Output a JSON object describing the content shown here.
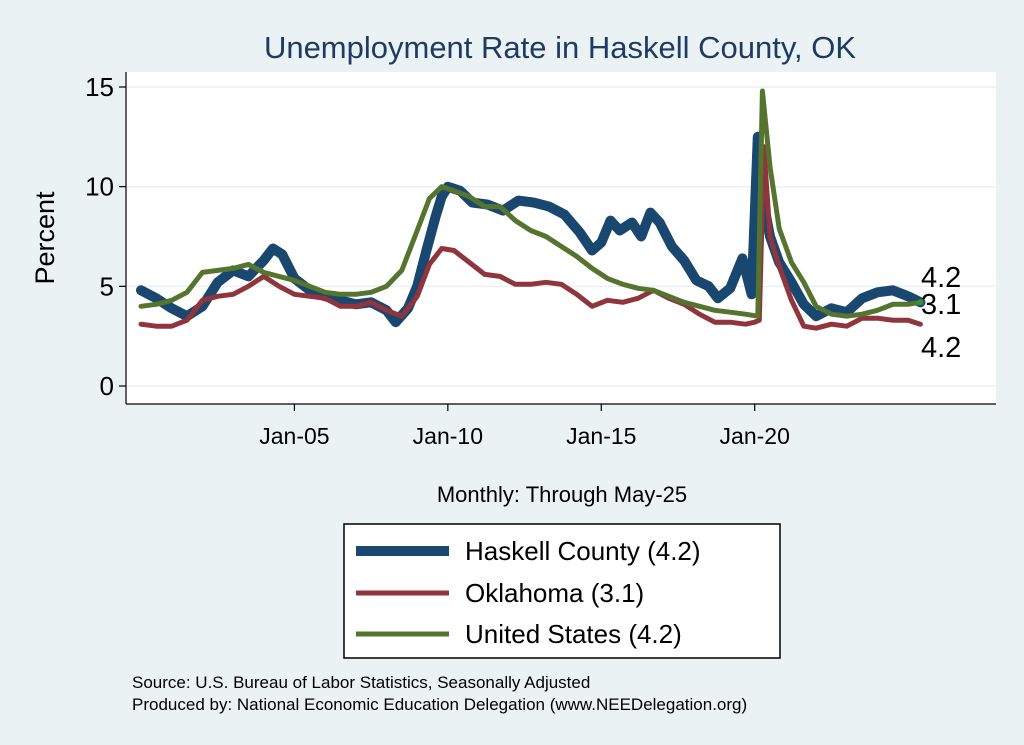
{
  "chart_data": {
    "type": "line",
    "title": "Unemployment Rate in Haskell  County, OK",
    "xlabel": "Monthly: Through May-25",
    "ylabel": "Percent",
    "ylim": [
      0,
      15
    ],
    "xlim": [
      2000.0,
      2028.0
    ],
    "yticks": [
      {
        "value": 0,
        "label": "0"
      },
      {
        "value": 5,
        "label": "5"
      },
      {
        "value": 10,
        "label": "10"
      },
      {
        "value": 15,
        "label": "15"
      }
    ],
    "xticks": [
      {
        "value": 2005.0,
        "label": "Jan-05"
      },
      {
        "value": 2010.0,
        "label": "Jan-10"
      },
      {
        "value": 2015.0,
        "label": "Jan-15"
      },
      {
        "value": 2020.0,
        "label": "Jan-20"
      }
    ],
    "grid": true,
    "series": [
      {
        "name": "Haskell  County",
        "legend": "Haskell  County (4.2)",
        "color": "#1a476f",
        "last_label": "4.2",
        "points": [
          [
            2000.0,
            4.8
          ],
          [
            2000.5,
            4.4
          ],
          [
            2001.0,
            3.9
          ],
          [
            2001.5,
            3.5
          ],
          [
            2002.0,
            4.0
          ],
          [
            2002.5,
            5.2
          ],
          [
            2003.0,
            5.8
          ],
          [
            2003.5,
            5.5
          ],
          [
            2004.0,
            6.3
          ],
          [
            2004.3,
            6.9
          ],
          [
            2004.6,
            6.6
          ],
          [
            2005.0,
            5.4
          ],
          [
            2005.5,
            4.8
          ],
          [
            2006.0,
            4.5
          ],
          [
            2006.5,
            4.3
          ],
          [
            2007.0,
            4.1
          ],
          [
            2007.5,
            4.2
          ],
          [
            2008.0,
            3.8
          ],
          [
            2008.3,
            3.2
          ],
          [
            2008.7,
            3.9
          ],
          [
            2009.0,
            5.0
          ],
          [
            2009.3,
            6.8
          ],
          [
            2009.6,
            8.5
          ],
          [
            2009.8,
            9.5
          ],
          [
            2010.0,
            10.0
          ],
          [
            2010.4,
            9.8
          ],
          [
            2010.8,
            9.2
          ],
          [
            2011.3,
            9.1
          ],
          [
            2011.8,
            8.8
          ],
          [
            2012.3,
            9.3
          ],
          [
            2012.8,
            9.2
          ],
          [
            2013.3,
            9.0
          ],
          [
            2013.8,
            8.6
          ],
          [
            2014.3,
            7.7
          ],
          [
            2014.7,
            6.8
          ],
          [
            2015.0,
            7.2
          ],
          [
            2015.3,
            8.3
          ],
          [
            2015.6,
            7.8
          ],
          [
            2016.0,
            8.2
          ],
          [
            2016.3,
            7.5
          ],
          [
            2016.6,
            8.7
          ],
          [
            2016.9,
            8.2
          ],
          [
            2017.3,
            7.0
          ],
          [
            2017.7,
            6.3
          ],
          [
            2018.1,
            5.3
          ],
          [
            2018.5,
            5.0
          ],
          [
            2018.8,
            4.4
          ],
          [
            2019.2,
            4.9
          ],
          [
            2019.6,
            6.4
          ],
          [
            2019.9,
            4.6
          ],
          [
            2020.1,
            12.5
          ],
          [
            2020.25,
            9.5
          ],
          [
            2020.5,
            7.5
          ],
          [
            2020.8,
            6.2
          ],
          [
            2021.2,
            5.2
          ],
          [
            2021.6,
            4.1
          ],
          [
            2022.0,
            3.5
          ],
          [
            2022.5,
            3.9
          ],
          [
            2023.0,
            3.7
          ],
          [
            2023.5,
            4.4
          ],
          [
            2024.0,
            4.7
          ],
          [
            2024.5,
            4.8
          ],
          [
            2025.0,
            4.5
          ],
          [
            2025.4,
            4.2
          ]
        ]
      },
      {
        "name": "Oklahoma",
        "legend": "Oklahoma (3.1)",
        "color": "#90353b",
        "last_label": "3.1",
        "points": [
          [
            2000.0,
            3.1
          ],
          [
            2000.5,
            3.0
          ],
          [
            2001.0,
            3.0
          ],
          [
            2001.5,
            3.3
          ],
          [
            2002.0,
            4.3
          ],
          [
            2002.5,
            4.5
          ],
          [
            2003.0,
            4.6
          ],
          [
            2003.5,
            5.0
          ],
          [
            2004.0,
            5.5
          ],
          [
            2004.5,
            5.0
          ],
          [
            2005.0,
            4.6
          ],
          [
            2005.5,
            4.5
          ],
          [
            2006.0,
            4.4
          ],
          [
            2006.5,
            4.0
          ],
          [
            2007.0,
            4.0
          ],
          [
            2007.5,
            4.2
          ],
          [
            2008.0,
            3.8
          ],
          [
            2008.5,
            3.5
          ],
          [
            2009.0,
            4.5
          ],
          [
            2009.4,
            6.1
          ],
          [
            2009.8,
            6.9
          ],
          [
            2010.2,
            6.8
          ],
          [
            2010.7,
            6.2
          ],
          [
            2011.2,
            5.6
          ],
          [
            2011.7,
            5.5
          ],
          [
            2012.2,
            5.1
          ],
          [
            2012.7,
            5.1
          ],
          [
            2013.2,
            5.2
          ],
          [
            2013.7,
            5.1
          ],
          [
            2014.2,
            4.6
          ],
          [
            2014.7,
            4.0
          ],
          [
            2015.2,
            4.3
          ],
          [
            2015.7,
            4.2
          ],
          [
            2016.2,
            4.4
          ],
          [
            2016.7,
            4.8
          ],
          [
            2017.2,
            4.4
          ],
          [
            2017.7,
            4.1
          ],
          [
            2018.2,
            3.6
          ],
          [
            2018.7,
            3.2
          ],
          [
            2019.2,
            3.2
          ],
          [
            2019.7,
            3.1
          ],
          [
            2020.0,
            3.2
          ],
          [
            2020.15,
            3.3
          ],
          [
            2020.3,
            12.0
          ],
          [
            2020.5,
            7.5
          ],
          [
            2020.8,
            6.0
          ],
          [
            2021.2,
            4.3
          ],
          [
            2021.6,
            3.0
          ],
          [
            2022.0,
            2.9
          ],
          [
            2022.5,
            3.1
          ],
          [
            2023.0,
            3.0
          ],
          [
            2023.5,
            3.4
          ],
          [
            2024.0,
            3.4
          ],
          [
            2024.5,
            3.3
          ],
          [
            2025.0,
            3.3
          ],
          [
            2025.4,
            3.1
          ]
        ]
      },
      {
        "name": "United States",
        "legend": "United States (4.2)",
        "color": "#55752f",
        "last_label": "4.2",
        "points": [
          [
            2000.0,
            4.0
          ],
          [
            2000.5,
            4.1
          ],
          [
            2001.0,
            4.3
          ],
          [
            2001.5,
            4.7
          ],
          [
            2002.0,
            5.7
          ],
          [
            2002.5,
            5.8
          ],
          [
            2003.0,
            5.9
          ],
          [
            2003.5,
            6.1
          ],
          [
            2004.0,
            5.7
          ],
          [
            2004.5,
            5.5
          ],
          [
            2005.0,
            5.3
          ],
          [
            2005.5,
            5.0
          ],
          [
            2006.0,
            4.7
          ],
          [
            2006.5,
            4.6
          ],
          [
            2007.0,
            4.6
          ],
          [
            2007.5,
            4.7
          ],
          [
            2008.0,
            5.0
          ],
          [
            2008.5,
            5.8
          ],
          [
            2009.0,
            7.8
          ],
          [
            2009.4,
            9.4
          ],
          [
            2009.8,
            10.0
          ],
          [
            2010.2,
            9.8
          ],
          [
            2010.7,
            9.5
          ],
          [
            2011.2,
            9.0
          ],
          [
            2011.7,
            9.0
          ],
          [
            2012.2,
            8.3
          ],
          [
            2012.7,
            7.8
          ],
          [
            2013.2,
            7.5
          ],
          [
            2013.7,
            7.0
          ],
          [
            2014.2,
            6.5
          ],
          [
            2014.7,
            5.9
          ],
          [
            2015.2,
            5.4
          ],
          [
            2015.7,
            5.1
          ],
          [
            2016.2,
            4.9
          ],
          [
            2016.7,
            4.8
          ],
          [
            2017.2,
            4.5
          ],
          [
            2017.7,
            4.2
          ],
          [
            2018.2,
            4.0
          ],
          [
            2018.7,
            3.8
          ],
          [
            2019.2,
            3.7
          ],
          [
            2019.7,
            3.6
          ],
          [
            2020.1,
            3.5
          ],
          [
            2020.25,
            14.8
          ],
          [
            2020.5,
            11.0
          ],
          [
            2020.8,
            7.9
          ],
          [
            2021.2,
            6.2
          ],
          [
            2021.6,
            5.2
          ],
          [
            2022.0,
            4.0
          ],
          [
            2022.5,
            3.6
          ],
          [
            2023.0,
            3.5
          ],
          [
            2023.5,
            3.6
          ],
          [
            2024.0,
            3.8
          ],
          [
            2024.5,
            4.1
          ],
          [
            2025.0,
            4.1
          ],
          [
            2025.4,
            4.2
          ]
        ]
      }
    ],
    "source_line1": "Source: U.S. Bureau of Labor Statistics, Seasonally Adjusted",
    "source_line2": "Produced by: National Economic Education Delegation (www.NEEDelegation.org)"
  }
}
